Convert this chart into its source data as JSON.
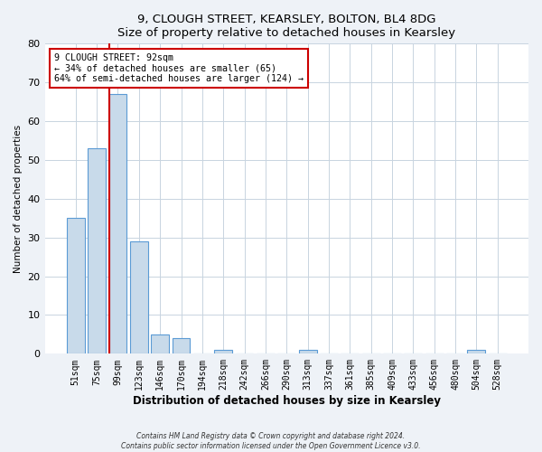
{
  "title": "9, CLOUGH STREET, KEARSLEY, BOLTON, BL4 8DG",
  "subtitle": "Size of property relative to detached houses in Kearsley",
  "xlabel": "Distribution of detached houses by size in Kearsley",
  "ylabel": "Number of detached properties",
  "bar_labels": [
    "51sqm",
    "75sqm",
    "99sqm",
    "123sqm",
    "146sqm",
    "170sqm",
    "194sqm",
    "218sqm",
    "242sqm",
    "266sqm",
    "290sqm",
    "313sqm",
    "337sqm",
    "361sqm",
    "385sqm",
    "409sqm",
    "433sqm",
    "456sqm",
    "480sqm",
    "504sqm",
    "528sqm"
  ],
  "bar_values": [
    35,
    53,
    67,
    29,
    5,
    4,
    0,
    1,
    0,
    0,
    0,
    1,
    0,
    0,
    0,
    0,
    0,
    0,
    0,
    1,
    0
  ],
  "bar_color": "#c8daea",
  "bar_edge_color": "#5b9bd5",
  "ylim": [
    0,
    80
  ],
  "yticks": [
    0,
    10,
    20,
    30,
    40,
    50,
    60,
    70,
    80
  ],
  "annotation_title": "9 CLOUGH STREET: 92sqm",
  "annotation_line1": "← 34% of detached houses are smaller (65)",
  "annotation_line2": "64% of semi-detached houses are larger (124) →",
  "annotation_box_color": "#ffffff",
  "annotation_box_edge_color": "#cc0000",
  "vline_color": "#cc0000",
  "footer_line1": "Contains HM Land Registry data © Crown copyright and database right 2024.",
  "footer_line2": "Contains public sector information licensed under the Open Government Licence v3.0.",
  "bg_color": "#eef2f7",
  "plot_bg_color": "#ffffff",
  "grid_color": "#c8d4e0"
}
